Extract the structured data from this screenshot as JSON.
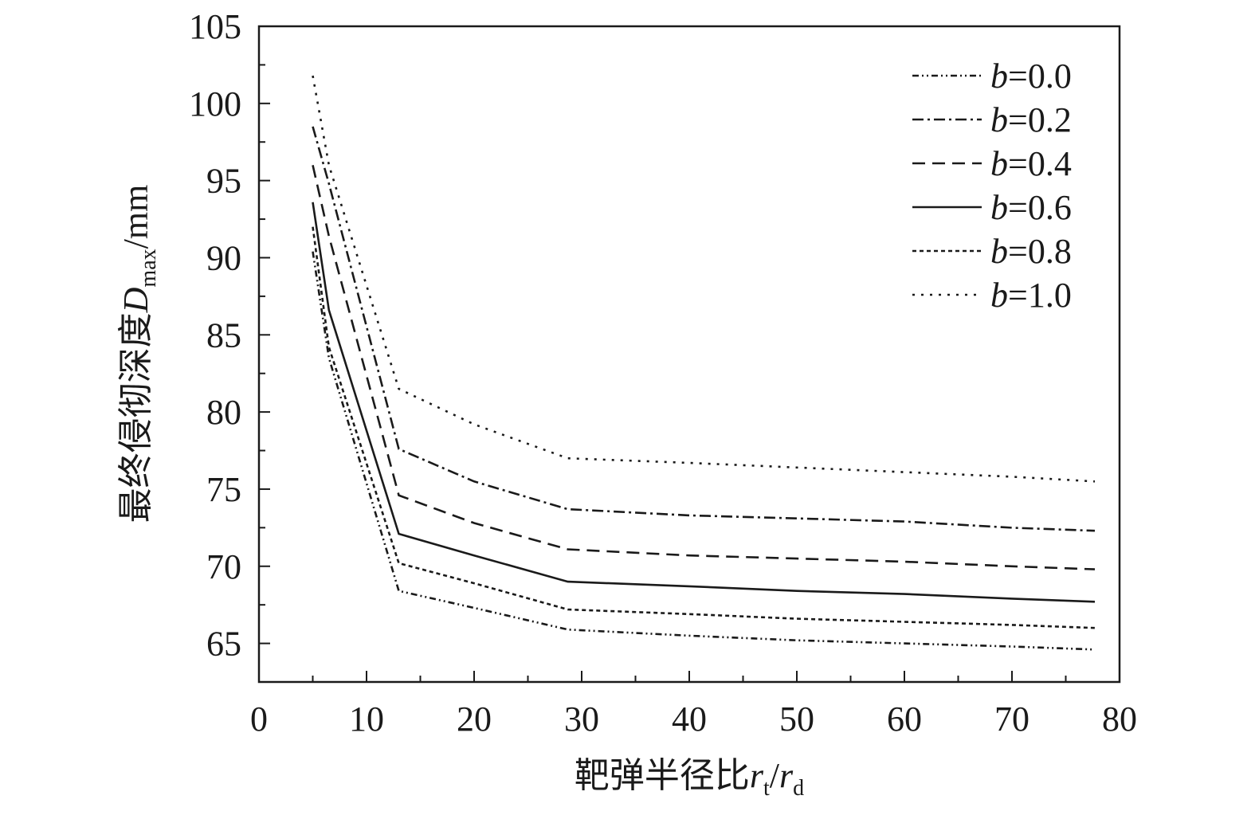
{
  "chart_data": {
    "type": "line",
    "ylabel_text": "最终侵彻深度",
    "ylabel_var": "D",
    "ylabel_sub": "max",
    "ylabel_unit": "/mm",
    "xlabel_text": "靶弹半径比",
    "xlabel_var1": "r",
    "xlabel_sub1": "t",
    "xlabel_sep": "/",
    "xlabel_var2": "r",
    "xlabel_sub2": "d",
    "xlim": [
      0,
      80
    ],
    "ylim": [
      62.5,
      105
    ],
    "xticks": [
      0,
      10,
      20,
      30,
      40,
      50,
      60,
      70,
      80
    ],
    "yticks": [
      65,
      70,
      75,
      80,
      85,
      90,
      95,
      100,
      105
    ],
    "grid": false,
    "legend_position": "top-right",
    "legend_var": "b",
    "x": [
      5,
      6.5,
      13,
      20,
      28.7,
      40,
      50,
      60,
      70,
      77.7
    ],
    "series": [
      {
        "name": "=0.0",
        "dash": "8 4 2 4 2 4",
        "values": [
          90.4,
          83.5,
          68.4,
          67.3,
          65.9,
          65.5,
          65.2,
          65.0,
          64.8,
          64.6
        ]
      },
      {
        "name": "=0.2",
        "dash": "14 5 3 5",
        "values": [
          98.5,
          94.8,
          77.6,
          75.5,
          73.7,
          73.3,
          73.1,
          72.9,
          72.5,
          72.3
        ]
      },
      {
        "name": "=0.4",
        "dash": "16 9",
        "values": [
          96.0,
          91.4,
          74.6,
          72.8,
          71.1,
          70.7,
          70.5,
          70.3,
          70.0,
          69.8
        ]
      },
      {
        "name": "=0.6",
        "dash": "",
        "values": [
          93.6,
          86.6,
          72.1,
          70.7,
          69.0,
          68.7,
          68.4,
          68.2,
          67.9,
          67.7
        ]
      },
      {
        "name": "=0.8",
        "dash": "5 4",
        "values": [
          92.0,
          84.2,
          70.2,
          68.9,
          67.2,
          66.9,
          66.6,
          66.4,
          66.2,
          66.0
        ]
      },
      {
        "name": "=1.0",
        "dash": "3 8",
        "values": [
          101.8,
          96.0,
          81.5,
          79.2,
          77.0,
          76.7,
          76.4,
          76.1,
          75.8,
          75.5
        ]
      }
    ]
  }
}
